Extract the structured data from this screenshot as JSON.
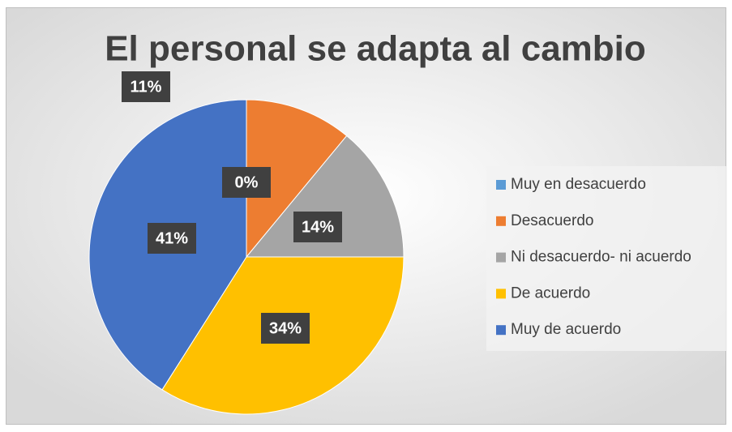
{
  "chart_data": {
    "type": "pie",
    "title": "El personal se adapta al cambio",
    "categories": [
      "Muy en desacuerdo",
      "Desacuerdo",
      "Ni desacuerdo- ni acuerdo",
      "De acuerdo",
      "Muy de acuerdo"
    ],
    "values": [
      0,
      11,
      14,
      34,
      41
    ],
    "value_labels": [
      "0%",
      "11%",
      "14%",
      "34%",
      "41%"
    ],
    "colors": [
      "#5b9bd5",
      "#ed7d31",
      "#a5a5a5",
      "#ffc000",
      "#4472c4"
    ],
    "legend": "right"
  }
}
